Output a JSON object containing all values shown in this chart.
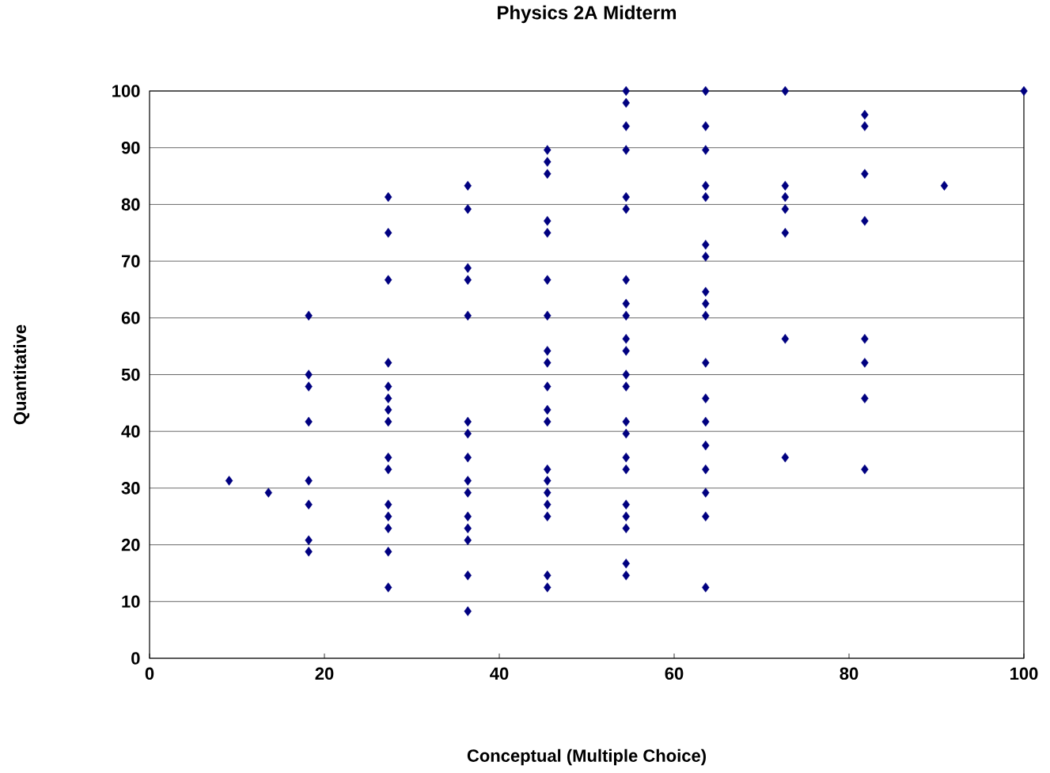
{
  "chart_data": {
    "type": "scatter",
    "title": "Physics 2A Midterm",
    "xlabel": "Conceptual (Multiple Choice)",
    "ylabel": "Quantitative",
    "xlim": [
      0,
      100
    ],
    "xticks": [
      0,
      20,
      40,
      60,
      80,
      100
    ],
    "ylim": [
      0,
      100
    ],
    "yticks": [
      0,
      10,
      20,
      30,
      40,
      50,
      60,
      70,
      80,
      90,
      100
    ],
    "grid": "y",
    "marker": "diamond",
    "series": [
      {
        "color": "#000080",
        "x": [
          9.1,
          13.6,
          18.2,
          18.2,
          18.2,
          18.2,
          18.2,
          18.2,
          18.2,
          18.2,
          27.3,
          27.3,
          27.3,
          27.3,
          27.3,
          27.3,
          27.3,
          27.3,
          27.3,
          27.3,
          27.3,
          27.3,
          27.3,
          27.3,
          27.3,
          36.4,
          36.4,
          36.4,
          36.4,
          36.4,
          36.4,
          36.4,
          36.4,
          36.4,
          36.4,
          36.4,
          36.4,
          36.4,
          36.4,
          36.4,
          45.5,
          45.5,
          45.5,
          45.5,
          45.5,
          45.5,
          45.5,
          45.5,
          45.5,
          45.5,
          45.5,
          45.5,
          45.5,
          45.5,
          45.5,
          45.5,
          45.5,
          45.5,
          45.5,
          54.5,
          54.5,
          54.5,
          54.5,
          54.5,
          54.5,
          54.5,
          54.5,
          54.5,
          54.5,
          54.5,
          54.5,
          54.5,
          54.5,
          54.5,
          54.5,
          54.5,
          54.5,
          54.5,
          54.5,
          54.5,
          54.5,
          63.6,
          63.6,
          63.6,
          63.6,
          63.6,
          63.6,
          63.6,
          63.6,
          63.6,
          63.6,
          63.6,
          63.6,
          63.6,
          63.6,
          63.6,
          63.6,
          63.6,
          63.6,
          72.7,
          72.7,
          72.7,
          72.7,
          72.7,
          72.7,
          72.7,
          81.8,
          81.8,
          81.8,
          81.8,
          81.8,
          81.8,
          81.8,
          81.8,
          90.9,
          100
        ],
        "values": [
          31.3,
          29.2,
          60.4,
          50,
          47.9,
          41.7,
          31.3,
          27.1,
          20.8,
          18.8,
          81.3,
          75,
          66.7,
          52.1,
          47.9,
          45.8,
          43.8,
          41.7,
          35.4,
          33.3,
          27.1,
          25,
          22.9,
          18.8,
          12.5,
          83.3,
          79.2,
          68.8,
          66.7,
          60.4,
          41.7,
          39.6,
          35.4,
          31.3,
          29.2,
          25,
          22.9,
          20.8,
          14.6,
          8.3,
          89.6,
          87.5,
          85.4,
          77.1,
          75,
          66.7,
          60.4,
          54.2,
          52.1,
          47.9,
          43.8,
          41.7,
          33.3,
          31.3,
          29.2,
          27.1,
          25,
          14.6,
          12.5,
          100,
          97.9,
          93.8,
          89.6,
          81.3,
          79.2,
          66.7,
          62.5,
          60.4,
          56.3,
          54.2,
          50,
          47.9,
          41.7,
          39.6,
          35.4,
          33.3,
          27.1,
          25,
          22.9,
          16.7,
          14.6,
          100,
          93.8,
          89.6,
          83.3,
          81.3,
          72.9,
          70.8,
          64.6,
          62.5,
          60.4,
          52.1,
          45.8,
          41.7,
          37.5,
          33.3,
          29.2,
          25,
          12.5,
          100,
          83.3,
          81.3,
          79.2,
          75,
          56.3,
          35.4,
          95.8,
          93.8,
          85.4,
          77.1,
          56.3,
          52.1,
          45.8,
          33.3,
          83.3,
          100
        ]
      }
    ]
  }
}
